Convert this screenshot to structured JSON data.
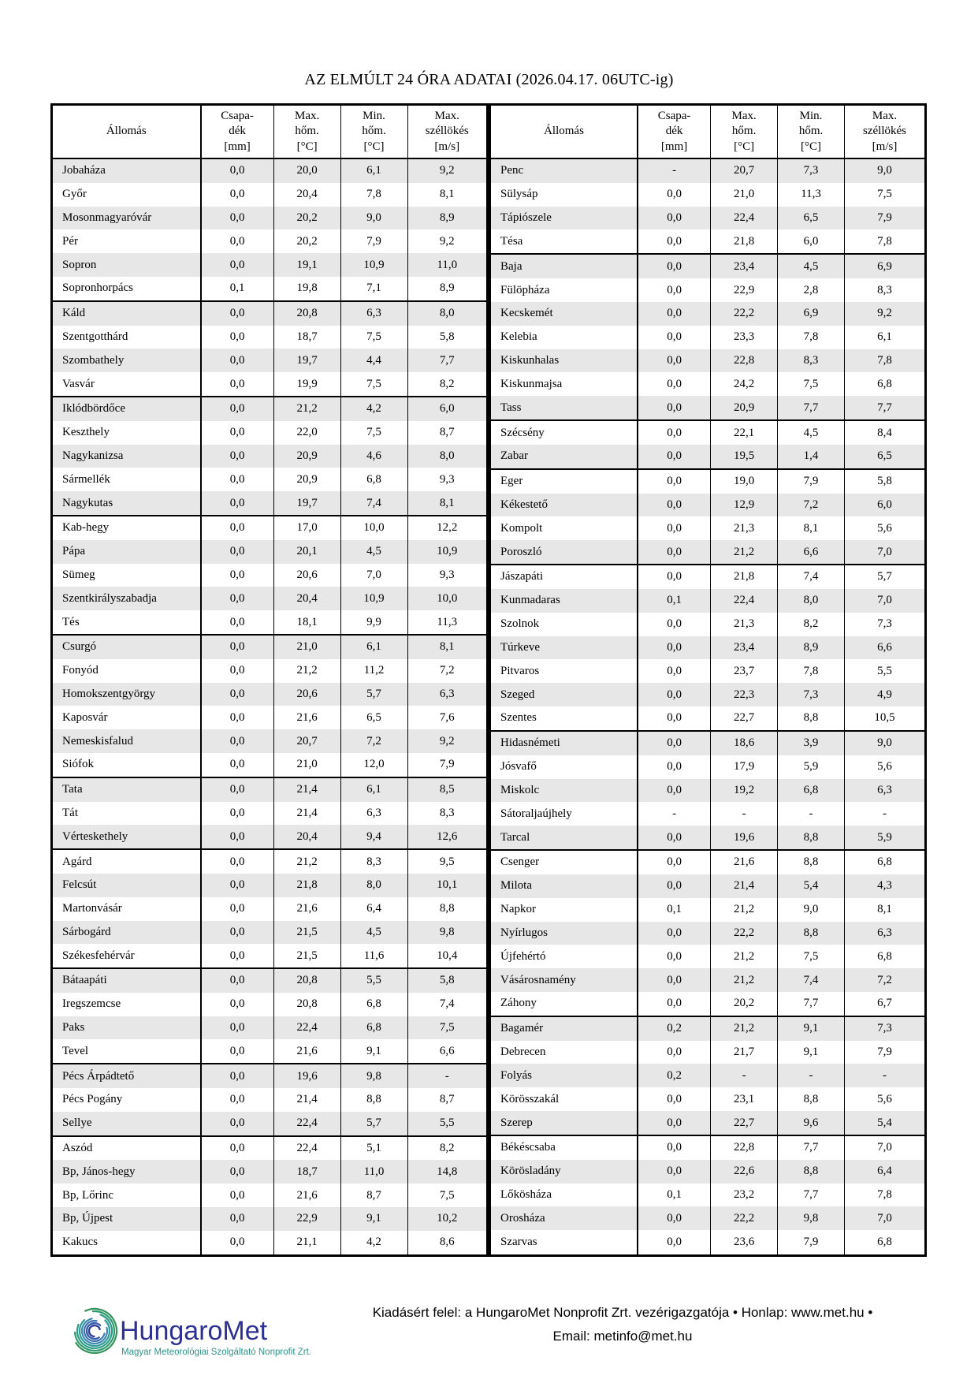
{
  "title": "AZ ELMÚLT 24 ÓRA ADATAI (2026.04.17. 06UTC-ig)",
  "table": {
    "headers": {
      "station": "Állomás",
      "precip": "Csapa-\ndék\n[mm]",
      "tmax": "Max.\nhőm.\n[°C]",
      "tmin": "Min.\nhőm.\n[°C]",
      "gust": "Max.\nszéllökés\n[m/s]"
    },
    "left": {
      "group_sizes": [
        6,
        4,
        5,
        5,
        6,
        3,
        5,
        4,
        3,
        5
      ],
      "rows": [
        [
          "Jobaháza",
          "0,0",
          "20,0",
          "6,1",
          "9,2"
        ],
        [
          "Győr",
          "0,0",
          "20,4",
          "7,8",
          "8,1"
        ],
        [
          "Mosonmagyaróvár",
          "0,0",
          "20,2",
          "9,0",
          "8,9"
        ],
        [
          "Pér",
          "0,0",
          "20,2",
          "7,9",
          "9,2"
        ],
        [
          "Sopron",
          "0,0",
          "19,1",
          "10,9",
          "11,0"
        ],
        [
          "Sopronhorpács",
          "0,1",
          "19,8",
          "7,1",
          "8,9"
        ],
        [
          "Káld",
          "0,0",
          "20,8",
          "6,3",
          "8,0"
        ],
        [
          "Szentgotthárd",
          "0,0",
          "18,7",
          "7,5",
          "5,8"
        ],
        [
          "Szombathely",
          "0,0",
          "19,7",
          "4,4",
          "7,7"
        ],
        [
          "Vasvár",
          "0,0",
          "19,9",
          "7,5",
          "8,2"
        ],
        [
          "Iklódbördőce",
          "0,0",
          "21,2",
          "4,2",
          "6,0"
        ],
        [
          "Keszthely",
          "0,0",
          "22,0",
          "7,5",
          "8,7"
        ],
        [
          "Nagykanizsa",
          "0,0",
          "20,9",
          "4,6",
          "8,0"
        ],
        [
          "Sármellék",
          "0,0",
          "20,9",
          "6,8",
          "9,3"
        ],
        [
          "Nagykutas",
          "0,0",
          "19,7",
          "7,4",
          "8,1"
        ],
        [
          "Kab-hegy",
          "0,0",
          "17,0",
          "10,0",
          "12,2"
        ],
        [
          "Pápa",
          "0,0",
          "20,1",
          "4,5",
          "10,9"
        ],
        [
          "Sümeg",
          "0,0",
          "20,6",
          "7,0",
          "9,3"
        ],
        [
          "Szentkirályszabadja",
          "0,0",
          "20,4",
          "10,9",
          "10,0"
        ],
        [
          "Tés",
          "0,0",
          "18,1",
          "9,9",
          "11,3"
        ],
        [
          "Csurgó",
          "0,0",
          "21,0",
          "6,1",
          "8,1"
        ],
        [
          "Fonyód",
          "0,0",
          "21,2",
          "11,2",
          "7,2"
        ],
        [
          "Homokszentgyörgy",
          "0,0",
          "20,6",
          "5,7",
          "6,3"
        ],
        [
          "Kaposvár",
          "0,0",
          "21,6",
          "6,5",
          "7,6"
        ],
        [
          "Nemeskisfalud",
          "0,0",
          "20,7",
          "7,2",
          "9,2"
        ],
        [
          "Siófok",
          "0,0",
          "21,0",
          "12,0",
          "7,9"
        ],
        [
          "Tata",
          "0,0",
          "21,4",
          "6,1",
          "8,5"
        ],
        [
          "Tát",
          "0,0",
          "21,4",
          "6,3",
          "8,3"
        ],
        [
          "Vérteskethely",
          "0,0",
          "20,4",
          "9,4",
          "12,6"
        ],
        [
          "Agárd",
          "0,0",
          "21,2",
          "8,3",
          "9,5"
        ],
        [
          "Felcsút",
          "0,0",
          "21,8",
          "8,0",
          "10,1"
        ],
        [
          "Martonvásár",
          "0,0",
          "21,6",
          "6,4",
          "8,8"
        ],
        [
          "Sárbogárd",
          "0,0",
          "21,5",
          "4,5",
          "9,8"
        ],
        [
          "Székesfehérvár",
          "0,0",
          "21,5",
          "11,6",
          "10,4"
        ],
        [
          "Bátaapáti",
          "0,0",
          "20,8",
          "5,5",
          "5,8"
        ],
        [
          "Iregszemcse",
          "0,0",
          "20,8",
          "6,8",
          "7,4"
        ],
        [
          "Paks",
          "0,0",
          "22,4",
          "6,8",
          "7,5"
        ],
        [
          "Tevel",
          "0,0",
          "21,6",
          "9,1",
          "6,6"
        ],
        [
          "Pécs Árpádtető",
          "0,0",
          "19,6",
          "9,8",
          "-"
        ],
        [
          "Pécs Pogány",
          "0,0",
          "21,4",
          "8,8",
          "8,7"
        ],
        [
          "Sellye",
          "0,0",
          "22,4",
          "5,7",
          "5,5"
        ],
        [
          "Aszód",
          "0,0",
          "22,4",
          "5,1",
          "8,2"
        ],
        [
          "Bp, János-hegy",
          "0,0",
          "18,7",
          "11,0",
          "14,8"
        ],
        [
          "Bp, Lőrinc",
          "0,0",
          "21,6",
          "8,7",
          "7,5"
        ],
        [
          "Bp, Újpest",
          "0,0",
          "22,9",
          "9,1",
          "10,2"
        ],
        [
          "Kakucs",
          "0,0",
          "21,1",
          "4,2",
          "8,6"
        ]
      ]
    },
    "right": {
      "group_sizes": [
        4,
        7,
        2,
        4,
        7,
        5,
        7,
        5,
        5
      ],
      "rows": [
        [
          "Penc",
          "-",
          "20,7",
          "7,3",
          "9,0"
        ],
        [
          "Sülysáp",
          "0,0",
          "21,0",
          "11,3",
          "7,5"
        ],
        [
          "Tápiószele",
          "0,0",
          "22,4",
          "6,5",
          "7,9"
        ],
        [
          "Tésa",
          "0,0",
          "21,8",
          "6,0",
          "7,8"
        ],
        [
          "Baja",
          "0,0",
          "23,4",
          "4,5",
          "6,9"
        ],
        [
          "Fülöpháza",
          "0,0",
          "22,9",
          "2,8",
          "8,3"
        ],
        [
          "Kecskemét",
          "0,0",
          "22,2",
          "6,9",
          "9,2"
        ],
        [
          "Kelebia",
          "0,0",
          "23,3",
          "7,8",
          "6,1"
        ],
        [
          "Kiskunhalas",
          "0,0",
          "22,8",
          "8,3",
          "7,8"
        ],
        [
          "Kiskunmajsa",
          "0,0",
          "24,2",
          "7,5",
          "6,8"
        ],
        [
          "Tass",
          "0,0",
          "20,9",
          "7,7",
          "7,7"
        ],
        [
          "Szécsény",
          "0,0",
          "22,1",
          "4,5",
          "8,4"
        ],
        [
          "Zabar",
          "0,0",
          "19,5",
          "1,4",
          "6,5"
        ],
        [
          "Eger",
          "0,0",
          "19,0",
          "7,9",
          "5,8"
        ],
        [
          "Kékestető",
          "0,0",
          "12,9",
          "7,2",
          "6,0"
        ],
        [
          "Kompolt",
          "0,0",
          "21,3",
          "8,1",
          "5,6"
        ],
        [
          "Poroszló",
          "0,0",
          "21,2",
          "6,6",
          "7,0"
        ],
        [
          "Jászapáti",
          "0,0",
          "21,8",
          "7,4",
          "5,7"
        ],
        [
          "Kunmadaras",
          "0,1",
          "22,4",
          "8,0",
          "7,0"
        ],
        [
          "Szolnok",
          "0,0",
          "21,3",
          "8,2",
          "7,3"
        ],
        [
          "Túrkeve",
          "0,0",
          "23,4",
          "8,9",
          "6,6"
        ],
        [
          "Pitvaros",
          "0,0",
          "23,7",
          "7,8",
          "5,5"
        ],
        [
          "Szeged",
          "0,0",
          "22,3",
          "7,3",
          "4,9"
        ],
        [
          "Szentes",
          "0,0",
          "22,7",
          "8,8",
          "10,5"
        ],
        [
          "Hidasnémeti",
          "0,0",
          "18,6",
          "3,9",
          "9,0"
        ],
        [
          "Jósvafő",
          "0,0",
          "17,9",
          "5,9",
          "5,6"
        ],
        [
          "Miskolc",
          "0,0",
          "19,2",
          "6,8",
          "6,3"
        ],
        [
          "Sátoraljaújhely",
          "-",
          "-",
          "-",
          "-"
        ],
        [
          "Tarcal",
          "0,0",
          "19,6",
          "8,8",
          "5,9"
        ],
        [
          "Csenger",
          "0,0",
          "21,6",
          "8,8",
          "6,8"
        ],
        [
          "Milota",
          "0,0",
          "21,4",
          "5,4",
          "4,3"
        ],
        [
          "Napkor",
          "0,1",
          "21,2",
          "9,0",
          "8,1"
        ],
        [
          "Nyírlugos",
          "0,0",
          "22,2",
          "8,8",
          "6,3"
        ],
        [
          "Újfehértó",
          "0,0",
          "21,2",
          "7,5",
          "6,8"
        ],
        [
          "Vásárosnamény",
          "0,0",
          "21,2",
          "7,4",
          "7,2"
        ],
        [
          "Záhony",
          "0,0",
          "20,2",
          "7,7",
          "6,7"
        ],
        [
          "Bagamér",
          "0,2",
          "21,2",
          "9,1",
          "7,3"
        ],
        [
          "Debrecen",
          "0,0",
          "21,7",
          "9,1",
          "7,9"
        ],
        [
          "Folyás",
          "0,2",
          "-",
          "-",
          "-"
        ],
        [
          "Körösszakál",
          "0,0",
          "23,1",
          "8,8",
          "5,6"
        ],
        [
          "Szerep",
          "0,0",
          "22,7",
          "9,6",
          "5,4"
        ],
        [
          "Békéscsaba",
          "0,0",
          "22,8",
          "7,7",
          "7,0"
        ],
        [
          "Körösladány",
          "0,0",
          "22,6",
          "8,8",
          "6,4"
        ],
        [
          "Lőkösháza",
          "0,1",
          "23,2",
          "7,7",
          "7,8"
        ],
        [
          "Orosháza",
          "0,0",
          "22,2",
          "9,8",
          "7,0"
        ],
        [
          "Szarvas",
          "0,0",
          "23,6",
          "7,9",
          "6,8"
        ]
      ]
    }
  },
  "footer": {
    "line1": "Kiadásért felel: a HungaroMet Nonprofit Zrt. vezérigazgatója • Honlap: www.met.hu •",
    "line2": "Email: metinfo@met.hu",
    "logo_name": "HungaroMet",
    "logo_tagline": "Magyar Meteorológiai Szolgáltató Nonprofit Zrt.",
    "colors": {
      "logo_navy": "#2e3192",
      "logo_teal": "#2f9488",
      "logo_green": "#3aa05f",
      "logo_blue": "#3a6db5",
      "row_shade": "#e7e7e7",
      "border": "#000000"
    }
  }
}
